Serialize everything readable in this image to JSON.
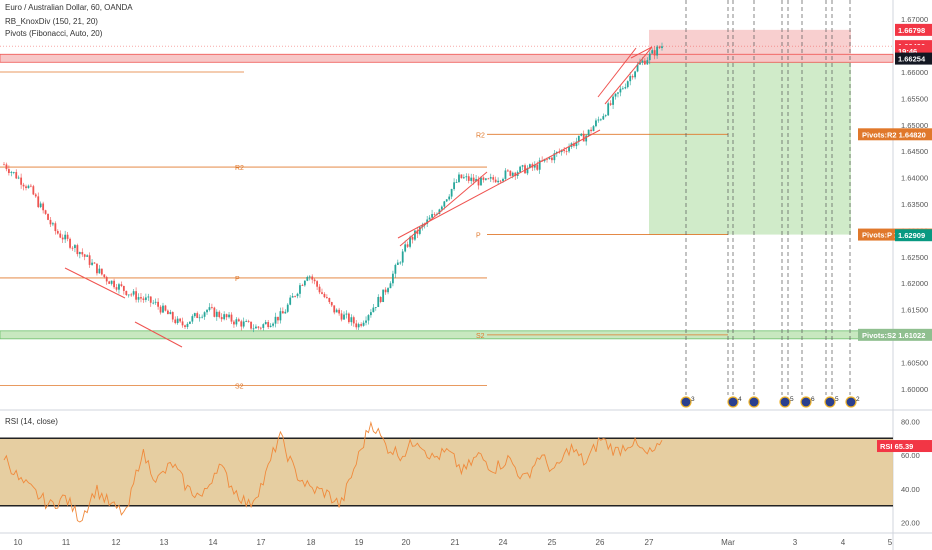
{
  "header": {
    "symbol": "Euro / Australian Dollar, 60, OANDA",
    "indicator1": "RB_KnoxDiv (150, 21, 20)",
    "indicator2": "Pivots (Fibonacci, Auto, 20)",
    "rsi_label": "RSI (14, close)"
  },
  "chart_data": [
    {
      "type": "candlestick",
      "title": "Euro / Australian Dollar, 60, OANDA",
      "x_tick_labels": [
        "10",
        "11",
        "12",
        "13",
        "14",
        "17",
        "18",
        "19",
        "20",
        "21",
        "24",
        "25",
        "26",
        "27",
        "Mar",
        "3",
        "4",
        "5"
      ],
      "y_tick_labels": [
        "1.67000",
        "1.66000",
        "1.65500",
        "1.65000",
        "1.64500",
        "1.64000",
        "1.63500",
        "1.63000",
        "1.62500",
        "1.62000",
        "1.61500",
        "1.61000",
        "1.60500",
        "1.60000"
      ],
      "ylim": [
        1.5975,
        1.6725
      ],
      "approx_close_path": [
        {
          "x": "10",
          "y": 1.6425
        },
        {
          "x": "10",
          "y": 1.638
        },
        {
          "x": "11",
          "y": 1.63
        },
        {
          "x": "11",
          "y": 1.626
        },
        {
          "x": "12",
          "y": 1.621
        },
        {
          "x": "12",
          "y": 1.618
        },
        {
          "x": "13",
          "y": 1.616
        },
        {
          "x": "13",
          "y": 1.612
        },
        {
          "x": "14",
          "y": 1.615
        },
        {
          "x": "14",
          "y": 1.613
        },
        {
          "x": "17",
          "y": 1.6115
        },
        {
          "x": "17",
          "y": 1.614
        },
        {
          "x": "18",
          "y": 1.622
        },
        {
          "x": "18",
          "y": 1.615
        },
        {
          "x": "19",
          "y": 1.612
        },
        {
          "x": "19",
          "y": 1.618
        },
        {
          "x": "20",
          "y": 1.628
        },
        {
          "x": "20",
          "y": 1.633
        },
        {
          "x": "21",
          "y": 1.64
        },
        {
          "x": "21",
          "y": 1.639
        },
        {
          "x": "24",
          "y": 1.641
        },
        {
          "x": "24",
          "y": 1.642
        },
        {
          "x": "25",
          "y": 1.645
        },
        {
          "x": "25",
          "y": 1.648
        },
        {
          "x": "26",
          "y": 1.654
        },
        {
          "x": "26",
          "y": 1.661
        },
        {
          "x": "27",
          "y": 1.665
        }
      ],
      "pivot_levels": [
        {
          "label": "R2",
          "value": 1.642
        },
        {
          "label": "P",
          "value": 1.621
        },
        {
          "label": "S2",
          "value": 1.6006
        },
        {
          "label": "R2",
          "value": 1.6482
        },
        {
          "label": "P",
          "value": 1.62921
        },
        {
          "label": "S2",
          "value": 1.61022
        }
      ],
      "price_labels": [
        {
          "text": "1.66798",
          "value": 1.66798,
          "color": "#f23645"
        },
        {
          "text": "1.66490",
          "value": 1.6649,
          "color": "#f23645"
        },
        {
          "text": "19:46",
          "value": 1.664,
          "color": "#f23645"
        },
        {
          "text": "1.66254",
          "value": 1.66254,
          "color": "#131722"
        },
        {
          "text": "Pivots:R2",
          "value2": "1.64820",
          "value": 1.6482,
          "color": "#e0782b"
        },
        {
          "text": "Pivots:P",
          "value2": "1.62921",
          "value": 1.62921,
          "color": "#e0782b"
        },
        {
          "text": "1.62909",
          "value": 1.62909,
          "color": "#089981"
        },
        {
          "text": "Pivots:S2",
          "value2": "1.61022",
          "value": 1.61022,
          "color": "#8fbf8f"
        }
      ],
      "position": {
        "entry": 1.66254,
        "stop": 1.66798,
        "target": 1.62921,
        "direction": "short"
      },
      "grid": false
    },
    {
      "type": "line",
      "title": "RSI (14, close)",
      "y_tick_labels": [
        "80.00",
        "60.00",
        "40.00",
        "20.00"
      ],
      "ylim": [
        18,
        82
      ],
      "band": [
        30,
        70
      ],
      "current_value": "65.39",
      "approx_values": [
        60,
        45,
        38,
        30,
        35,
        22,
        40,
        30,
        25,
        62,
        45,
        55,
        40,
        35,
        55,
        40,
        30,
        45,
        72,
        50,
        40,
        38,
        30,
        55,
        80,
        65,
        60,
        70,
        58,
        62,
        50,
        60,
        52,
        58,
        45,
        60,
        50,
        65,
        55,
        70,
        62,
        68,
        60,
        65
      ]
    }
  ],
  "rsi_badge": {
    "label": "RSI",
    "value": "65.39"
  },
  "event_icons": [
    {
      "name": "event-icon",
      "count": "3",
      "pos": 0
    },
    {
      "name": "event-icon",
      "count": "4",
      "pos": 1
    },
    {
      "name": "event-icon",
      "count": "",
      "pos": 2
    },
    {
      "name": "event-icon",
      "count": "5",
      "pos": 3
    },
    {
      "name": "event-icon",
      "count": "6",
      "pos": 4
    },
    {
      "name": "event-icon",
      "count": "5",
      "pos": 5
    },
    {
      "name": "event-icon",
      "count": "2",
      "pos": 6
    }
  ],
  "colors": {
    "up": "#26a69a",
    "down": "#ef5350",
    "pivot": "#e0782b",
    "rsi_line": "#f08a3c",
    "rsi_band": "#e2c690",
    "profit_zone": "#c8e8c0",
    "loss_zone": "#f7c7c7"
  }
}
